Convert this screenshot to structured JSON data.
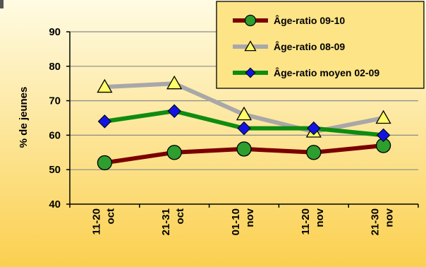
{
  "chart_data": {
    "type": "line",
    "ylabel": "% de jeunes",
    "ylim": [
      40,
      90
    ],
    "yticks": [
      40,
      50,
      60,
      70,
      80,
      90
    ],
    "grid": true,
    "legend_position": "top-right",
    "categories": [
      [
        "11-20",
        "oct"
      ],
      [
        "21-31",
        "oct"
      ],
      [
        "01-10",
        "nov"
      ],
      [
        "11-20",
        "nov"
      ],
      [
        "21-30",
        "nov"
      ]
    ],
    "series": [
      {
        "name": "Âge-ratio 09-10",
        "values": [
          52,
          55,
          56,
          55,
          57
        ],
        "color": "#7a0000",
        "marker": "circle",
        "marker_color": "#2e9e2e"
      },
      {
        "name": "Âge-ratio 08-09",
        "values": [
          74,
          75,
          66,
          61,
          65
        ],
        "color": "#a8a8a8",
        "marker": "triangle",
        "marker_color": "#ffff66"
      },
      {
        "name": "Âge-ratio moyen 02-09",
        "values": [
          64,
          67,
          62,
          62,
          60
        ],
        "color": "#0f8c0f",
        "marker": "diamond",
        "marker_color": "#1414e0"
      }
    ],
    "background_gradient": [
      "#fffbe3",
      "#fbd04f"
    ]
  }
}
